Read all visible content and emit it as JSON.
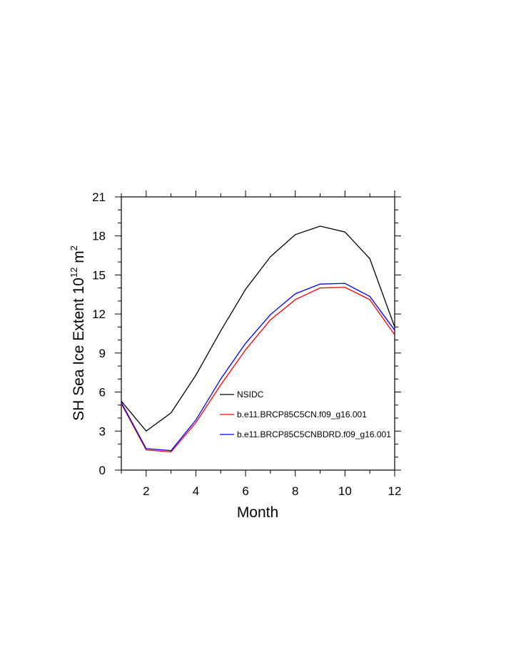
{
  "chart_data": {
    "type": "line",
    "xlabel": "Month",
    "ylabel_main": "SH Sea Ice Extent 10",
    "ylabel_exp": "12",
    "ylabel_unit": "m",
    "ylabel_unit_exp": "2",
    "xlim": [
      1,
      12
    ],
    "ylim": [
      0,
      21
    ],
    "xticks": [
      2,
      4,
      6,
      8,
      10,
      12
    ],
    "yticks": [
      0,
      3,
      6,
      9,
      12,
      15,
      18,
      21
    ],
    "x": [
      1,
      2,
      3,
      4,
      5,
      6,
      7,
      8,
      9,
      10,
      11,
      12
    ],
    "series": [
      {
        "name": "NSIDC",
        "color": "#000000",
        "values": [
          5.3,
          3.0,
          4.4,
          7.3,
          10.7,
          13.9,
          16.4,
          18.1,
          18.75,
          18.3,
          16.25,
          11.0
        ]
      },
      {
        "name": "b.e11.BRCP85C5CN.f09_g16.001",
        "color": "#ff0000",
        "values": [
          5.1,
          1.55,
          1.4,
          3.65,
          6.55,
          9.25,
          11.55,
          13.1,
          14.0,
          14.05,
          13.1,
          10.4
        ]
      },
      {
        "name": "b.e11.BRCP85C5CNBDRD.f09_g16.001",
        "color": "#0000ff",
        "values": [
          5.2,
          1.65,
          1.5,
          3.85,
          7.0,
          9.75,
          11.95,
          13.55,
          14.3,
          14.35,
          13.35,
          10.75
        ]
      }
    ],
    "legend_position": "inside-lower-right"
  }
}
